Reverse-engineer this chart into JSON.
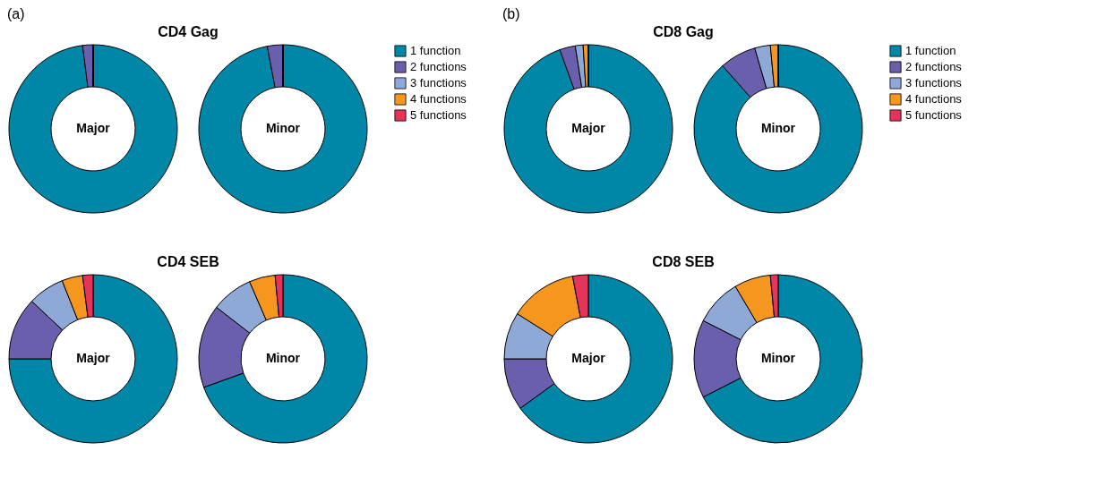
{
  "chart_data": [
    {
      "type": "donut",
      "title": "CD4 Gag",
      "annotations": [
        "Major",
        "(a)"
      ],
      "categories": [
        null,
        null,
        null,
        null,
        null
      ],
      "values": [
        98,
        2,
        0,
        0,
        0
      ],
      "colors": [
        "#0087a8",
        "#6a5fad",
        "#8fa9d6",
        "#f5961e",
        "#e6335a"
      ]
    },
    {
      "type": "donut",
      "annotations": [
        "Minor"
      ],
      "legend": "right",
      "categories": [
        "1 function",
        "2 functions",
        "3 functions",
        "4 functions",
        "5 functions"
      ],
      "values": [
        97,
        3,
        0,
        0,
        0
      ],
      "colors": [
        "#0087a8",
        "#6a5fad",
        "#8fa9d6",
        "#f5961e",
        "#e6335a"
      ]
    },
    {
      "type": "donut",
      "title": "CD4 SEB",
      "annotations": [
        "Major"
      ],
      "categories": [
        null,
        null,
        null,
        null,
        null
      ],
      "values": [
        75,
        12,
        7,
        4,
        2
      ],
      "colors": [
        "#0087a8",
        "#6a5fad",
        "#8fa9d6",
        "#f5961e",
        "#e6335a"
      ]
    },
    {
      "type": "donut",
      "annotations": [
        "Minor"
      ],
      "categories": [
        null,
        null,
        null,
        null,
        null
      ],
      "values": [
        69.5,
        16,
        8,
        5,
        1.5
      ],
      "colors": [
        "#0087a8",
        "#6a5fad",
        "#8fa9d6",
        "#f5961e",
        "#e6335a"
      ]
    },
    {
      "type": "donut",
      "title": "CD8 Gag",
      "annotations": [
        "Major",
        "(b)"
      ],
      "categories": [
        null,
        null,
        null,
        null,
        null
      ],
      "values": [
        94.5,
        3,
        1.5,
        1,
        0
      ],
      "colors": [
        "#0087a8",
        "#6a5fad",
        "#8fa9d6",
        "#f5961e",
        "#e6335a"
      ]
    },
    {
      "type": "donut",
      "annotations": [
        "Minor"
      ],
      "legend": "right",
      "categories": [
        "1 function",
        "2 functions",
        "3 functions",
        "4 functions",
        "5 functions"
      ],
      "values": [
        88.5,
        7,
        3,
        1.5,
        0
      ],
      "colors": [
        "#0087a8",
        "#6a5fad",
        "#8fa9d6",
        "#f5961e",
        "#e6335a"
      ]
    },
    {
      "type": "donut",
      "title": "CD8 SEB",
      "annotations": [
        "Major"
      ],
      "categories": [
        null,
        null,
        null,
        null,
        null
      ],
      "values": [
        65,
        10,
        9,
        13,
        3
      ],
      "colors": [
        "#0087a8",
        "#6a5fad",
        "#8fa9d6",
        "#f5961e",
        "#e6335a"
      ]
    },
    {
      "type": "donut",
      "annotations": [
        "Minor"
      ],
      "categories": [
        null,
        null,
        null,
        null,
        null
      ],
      "values": [
        67.5,
        15,
        9,
        7,
        1.5
      ],
      "colors": [
        "#0087a8",
        "#6a5fad",
        "#8fa9d6",
        "#f5961e",
        "#e6335a"
      ]
    }
  ]
}
